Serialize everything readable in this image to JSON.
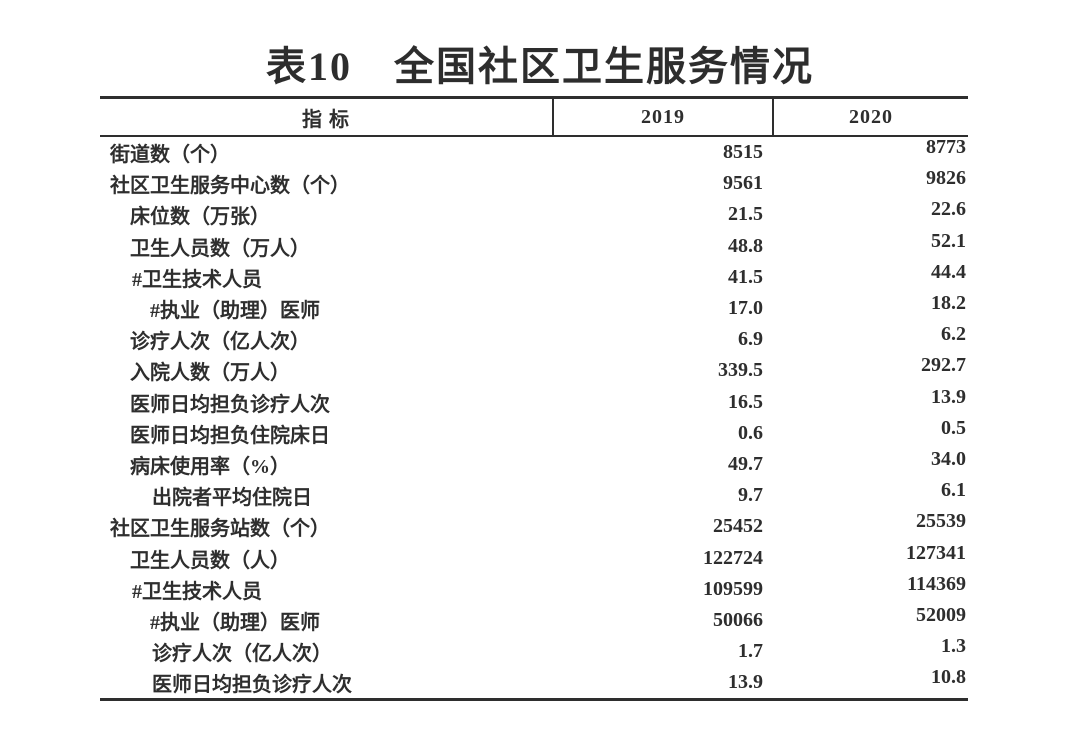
{
  "title": "表10　全国社区卫生服务情况",
  "colors": {
    "background": "#ffffff",
    "text": "#2e2e2e",
    "rule_lines": "#2e2e2e"
  },
  "table": {
    "columns": [
      "指 标",
      "2019",
      "2020"
    ],
    "rows": [
      {
        "indicator": "街道数（个）",
        "v2019": "8515",
        "v2020": "8773"
      },
      {
        "indicator": "社区卫生服务中心数（个）",
        "v2019": "9561",
        "v2020": "9826"
      },
      {
        "indicator": "床位数（万张）",
        "v2019": "21.5",
        "v2020": "22.6"
      },
      {
        "indicator": "卫生人员数（万人）",
        "v2019": "48.8",
        "v2020": "52.1"
      },
      {
        "indicator": "#卫生技术人员",
        "v2019": "41.5",
        "v2020": "44.4"
      },
      {
        "indicator": "#执业（助理）医师",
        "v2019": "17.0",
        "v2020": "18.2"
      },
      {
        "indicator": "诊疗人次（亿人次）",
        "v2019": "6.9",
        "v2020": "6.2"
      },
      {
        "indicator": "入院人数（万人）",
        "v2019": "339.5",
        "v2020": "292.7"
      },
      {
        "indicator": "医师日均担负诊疗人次",
        "v2019": "16.5",
        "v2020": "13.9"
      },
      {
        "indicator": "医师日均担负住院床日",
        "v2019": "0.6",
        "v2020": "0.5"
      },
      {
        "indicator": "病床使用率（%）",
        "v2019": "49.7",
        "v2020": "34.0"
      },
      {
        "indicator": "出院者平均住院日",
        "v2019": "9.7",
        "v2020": "6.1"
      },
      {
        "indicator": "社区卫生服务站数（个）",
        "v2019": "25452",
        "v2020": "25539"
      },
      {
        "indicator": "卫生人员数（人）",
        "v2019": "122724",
        "v2020": "127341"
      },
      {
        "indicator": "#卫生技术人员",
        "v2019": "109599",
        "v2020": "114369"
      },
      {
        "indicator": "#执业（助理）医师",
        "v2019": "50066",
        "v2020": "52009"
      },
      {
        "indicator": "诊疗人次（亿人次）",
        "v2019": "1.7",
        "v2020": "1.3"
      },
      {
        "indicator": "医师日均担负诊疗人次",
        "v2019": "13.9",
        "v2020": "10.8"
      }
    ]
  }
}
